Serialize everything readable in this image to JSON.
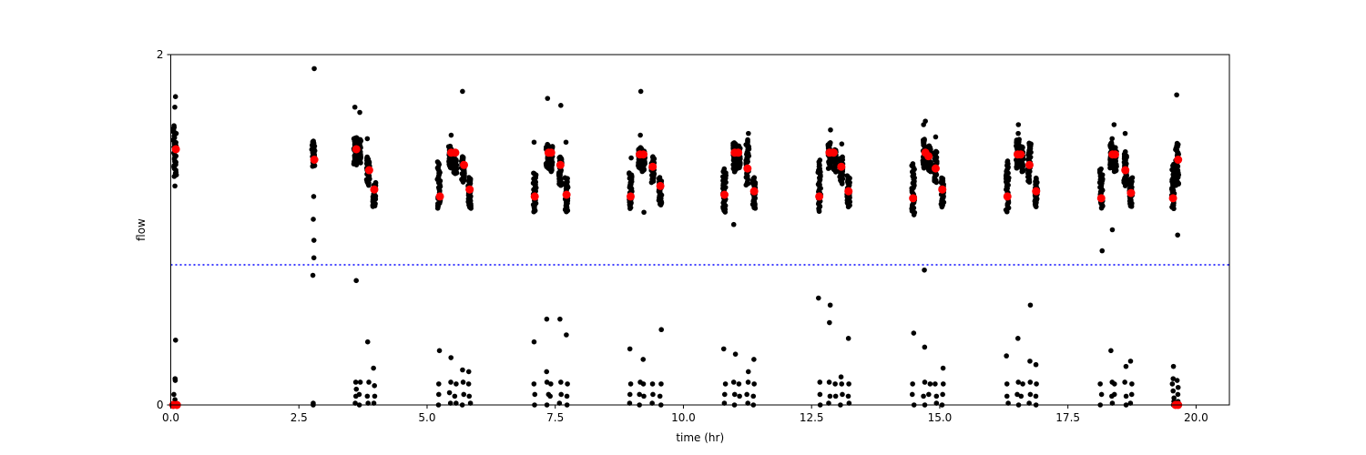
{
  "chart_data": {
    "type": "scatter",
    "xlabel": "time (hr)",
    "ylabel": "flow",
    "xlim": [
      0.0,
      20.65
    ],
    "ylim": [
      0,
      2
    ],
    "xticks": [
      0.0,
      2.5,
      5.0,
      7.5,
      10.0,
      12.5,
      15.0,
      17.5,
      20.0
    ],
    "xtick_labels": [
      "0.0",
      "2.5",
      "5.0",
      "7.5",
      "10.0",
      "12.5",
      "15.0",
      "17.5",
      "20.0"
    ],
    "yticks": [
      0,
      2
    ],
    "ytick_labels": [
      "0",
      "2"
    ],
    "grid": false,
    "threshold": {
      "y": 0.8,
      "color": "#0000ff",
      "style": "dotted"
    },
    "colors": {
      "raw": "#000000",
      "highlight": "#ff0000"
    },
    "raw_clusters": [
      {
        "x": 0.08,
        "ymin": 1.3,
        "ymax": 1.6,
        "outliers": [
          1.76,
          1.7,
          1.25,
          0.37,
          0.15,
          0.14,
          0.06,
          0.03,
          0.01,
          0.0
        ]
      },
      {
        "x": 2.78,
        "ymin": 1.36,
        "ymax": 1.51,
        "outliers": [
          1.92,
          1.19,
          1.06,
          0.94,
          0.84,
          0.74,
          0.01,
          0.0
        ]
      },
      {
        "x": 3.6,
        "ymin": 1.37,
        "ymax": 1.53,
        "outliers": [
          1.7,
          0.71,
          0.13,
          0.09,
          0.05,
          0.01
        ]
      },
      {
        "x": 3.68,
        "ymin": 1.38,
        "ymax": 1.52,
        "outliers": [
          1.67,
          0.13,
          0.06,
          0.0
        ]
      },
      {
        "x": 3.85,
        "ymin": 1.25,
        "ymax": 1.42,
        "outliers": [
          1.52,
          0.36,
          0.13,
          0.05,
          0.01
        ]
      },
      {
        "x": 3.97,
        "ymin": 1.13,
        "ymax": 1.27,
        "outliers": [
          0.21,
          0.11,
          0.05,
          0.01
        ]
      },
      {
        "x": 5.23,
        "ymin": 1.12,
        "ymax": 1.39,
        "outliers": [
          0.31,
          0.12,
          0.06,
          0.0
        ]
      },
      {
        "x": 5.45,
        "ymin": 1.35,
        "ymax": 1.48,
        "outliers": [
          1.54,
          0.27,
          0.13,
          0.07,
          0.01
        ]
      },
      {
        "x": 5.55,
        "ymin": 1.32,
        "ymax": 1.41,
        "outliers": [
          0.12,
          0.05,
          0.01
        ]
      },
      {
        "x": 5.7,
        "ymin": 1.27,
        "ymax": 1.42,
        "outliers": [
          1.79,
          0.2,
          0.13,
          0.06,
          0.0
        ]
      },
      {
        "x": 5.83,
        "ymin": 1.12,
        "ymax": 1.3,
        "outliers": [
          0.19,
          0.12,
          0.05,
          0.01
        ]
      },
      {
        "x": 7.1,
        "ymin": 1.1,
        "ymax": 1.33,
        "outliers": [
          1.5,
          0.36,
          0.12,
          0.06,
          0.0
        ]
      },
      {
        "x": 7.35,
        "ymin": 1.35,
        "ymax": 1.49,
        "outliers": [
          1.75,
          0.49,
          0.19,
          0.13,
          0.06,
          0.0
        ]
      },
      {
        "x": 7.42,
        "ymin": 1.33,
        "ymax": 1.48,
        "outliers": [
          0.12,
          0.05
        ]
      },
      {
        "x": 7.6,
        "ymin": 1.25,
        "ymax": 1.42,
        "outliers": [
          1.71,
          0.49,
          0.13,
          0.06,
          0.01
        ]
      },
      {
        "x": 7.72,
        "ymin": 1.1,
        "ymax": 1.3,
        "outliers": [
          1.5,
          0.4,
          0.12,
          0.05,
          0.0
        ]
      },
      {
        "x": 8.97,
        "ymin": 1.12,
        "ymax": 1.33,
        "outliers": [
          1.41,
          0.32,
          0.12,
          0.06,
          0.01
        ]
      },
      {
        "x": 9.15,
        "ymin": 1.35,
        "ymax": 1.47,
        "outliers": [
          1.79,
          1.54,
          0.13,
          0.06,
          0.0
        ]
      },
      {
        "x": 9.22,
        "ymin": 1.33,
        "ymax": 1.45,
        "outliers": [
          1.1,
          0.26,
          0.12,
          0.05
        ]
      },
      {
        "x": 9.4,
        "ymin": 1.27,
        "ymax": 1.42,
        "outliers": [
          0.12,
          0.06,
          0.01
        ]
      },
      {
        "x": 9.55,
        "ymin": 1.14,
        "ymax": 1.3,
        "outliers": [
          0.43,
          0.12,
          0.05,
          0.0
        ]
      },
      {
        "x": 10.8,
        "ymin": 1.1,
        "ymax": 1.35,
        "outliers": [
          0.32,
          0.12,
          0.06,
          0.01
        ]
      },
      {
        "x": 11.0,
        "ymin": 1.33,
        "ymax": 1.5,
        "outliers": [
          1.03,
          0.29,
          0.13,
          0.06,
          0.0
        ]
      },
      {
        "x": 11.08,
        "ymin": 1.35,
        "ymax": 1.48,
        "outliers": [
          0.12,
          0.05
        ]
      },
      {
        "x": 11.25,
        "ymin": 1.25,
        "ymax": 1.52,
        "outliers": [
          1.55,
          0.19,
          0.13,
          0.06,
          0.01
        ]
      },
      {
        "x": 11.38,
        "ymin": 1.12,
        "ymax": 1.3,
        "outliers": [
          0.26,
          0.12,
          0.05,
          0.0
        ]
      },
      {
        "x": 12.65,
        "ymin": 1.1,
        "ymax": 1.4,
        "outliers": [
          0.61,
          0.13,
          0.06,
          0.0
        ]
      },
      {
        "x": 12.85,
        "ymin": 1.35,
        "ymax": 1.5,
        "outliers": [
          1.57,
          0.57,
          0.47,
          0.13,
          0.05,
          0.01
        ]
      },
      {
        "x": 12.95,
        "ymin": 1.33,
        "ymax": 1.46,
        "outliers": [
          0.12,
          0.05
        ]
      },
      {
        "x": 13.08,
        "ymin": 1.26,
        "ymax": 1.42,
        "outliers": [
          1.49,
          0.16,
          0.12,
          0.06,
          0.0
        ]
      },
      {
        "x": 13.22,
        "ymin": 1.13,
        "ymax": 1.31,
        "outliers": [
          0.38,
          0.12,
          0.05,
          0.01
        ]
      },
      {
        "x": 14.48,
        "ymin": 1.08,
        "ymax": 1.38,
        "outliers": [
          0.41,
          0.12,
          0.06,
          0.0
        ]
      },
      {
        "x": 14.7,
        "ymin": 1.35,
        "ymax": 1.52,
        "outliers": [
          1.62,
          1.6,
          0.77,
          0.33,
          0.13,
          0.05,
          0.0
        ]
      },
      {
        "x": 14.8,
        "ymin": 1.33,
        "ymax": 1.48,
        "outliers": [
          0.12,
          0.06
        ]
      },
      {
        "x": 14.92,
        "ymin": 1.27,
        "ymax": 1.45,
        "outliers": [
          1.53,
          0.12,
          0.05,
          0.01
        ]
      },
      {
        "x": 15.05,
        "ymin": 1.13,
        "ymax": 1.3,
        "outliers": [
          0.21,
          0.12,
          0.06,
          0.0
        ]
      },
      {
        "x": 16.32,
        "ymin": 1.1,
        "ymax": 1.4,
        "outliers": [
          0.28,
          0.12,
          0.05,
          0.01
        ]
      },
      {
        "x": 16.52,
        "ymin": 1.35,
        "ymax": 1.52,
        "outliers": [
          1.6,
          1.55,
          0.38,
          0.13,
          0.06,
          0.0
        ]
      },
      {
        "x": 16.6,
        "ymin": 1.33,
        "ymax": 1.48,
        "outliers": [
          0.12,
          0.05
        ]
      },
      {
        "x": 16.75,
        "ymin": 1.27,
        "ymax": 1.5,
        "outliers": [
          0.57,
          0.25,
          0.13,
          0.06,
          0.01
        ]
      },
      {
        "x": 16.88,
        "ymin": 1.13,
        "ymax": 1.3,
        "outliers": [
          0.23,
          0.12,
          0.05,
          0.0
        ]
      },
      {
        "x": 18.15,
        "ymin": 1.12,
        "ymax": 1.35,
        "outliers": [
          0.88,
          0.12,
          0.06,
          0.0
        ]
      },
      {
        "x": 18.35,
        "ymin": 1.35,
        "ymax": 1.5,
        "outliers": [
          1.52,
          1.0,
          0.31,
          0.13,
          0.05,
          0.01
        ]
      },
      {
        "x": 18.42,
        "ymin": 1.33,
        "ymax": 1.47,
        "outliers": [
          1.6,
          0.12,
          0.06
        ]
      },
      {
        "x": 18.62,
        "ymin": 1.25,
        "ymax": 1.45,
        "outliers": [
          1.55,
          0.22,
          0.13,
          0.05,
          0.0
        ]
      },
      {
        "x": 18.73,
        "ymin": 1.13,
        "ymax": 1.3,
        "outliers": [
          0.25,
          0.12,
          0.06,
          0.01
        ]
      },
      {
        "x": 19.55,
        "ymin": 1.12,
        "ymax": 1.38,
        "outliers": [
          0.22,
          0.15,
          0.12,
          0.08,
          0.04,
          0.02,
          0.0
        ]
      },
      {
        "x": 19.63,
        "ymin": 1.25,
        "ymax": 1.5,
        "outliers": [
          1.77,
          0.97,
          0.14,
          0.1,
          0.06,
          0.02,
          0.0
        ]
      }
    ],
    "highlight_points": [
      {
        "x": 0.1,
        "y": 1.46
      },
      {
        "x": 0.05,
        "y": 0.0
      },
      {
        "x": 0.12,
        "y": 0.0
      },
      {
        "x": 2.8,
        "y": 1.4
      },
      {
        "x": 3.62,
        "y": 1.46
      },
      {
        "x": 3.87,
        "y": 1.34
      },
      {
        "x": 3.97,
        "y": 1.23
      },
      {
        "x": 5.25,
        "y": 1.19
      },
      {
        "x": 5.47,
        "y": 1.44
      },
      {
        "x": 5.55,
        "y": 1.44
      },
      {
        "x": 5.72,
        "y": 1.37
      },
      {
        "x": 5.83,
        "y": 1.23
      },
      {
        "x": 7.1,
        "y": 1.19
      },
      {
        "x": 7.37,
        "y": 1.44
      },
      {
        "x": 7.42,
        "y": 1.44
      },
      {
        "x": 7.6,
        "y": 1.37
      },
      {
        "x": 7.72,
        "y": 1.2
      },
      {
        "x": 8.97,
        "y": 1.19
      },
      {
        "x": 9.15,
        "y": 1.43
      },
      {
        "x": 9.22,
        "y": 1.43
      },
      {
        "x": 9.4,
        "y": 1.36
      },
      {
        "x": 9.55,
        "y": 1.25
      },
      {
        "x": 10.8,
        "y": 1.2
      },
      {
        "x": 11.0,
        "y": 1.44
      },
      {
        "x": 11.07,
        "y": 1.44
      },
      {
        "x": 11.25,
        "y": 1.35
      },
      {
        "x": 11.38,
        "y": 1.22
      },
      {
        "x": 12.65,
        "y": 1.19
      },
      {
        "x": 12.85,
        "y": 1.44
      },
      {
        "x": 12.93,
        "y": 1.44
      },
      {
        "x": 13.08,
        "y": 1.36
      },
      {
        "x": 13.22,
        "y": 1.22
      },
      {
        "x": 14.48,
        "y": 1.18
      },
      {
        "x": 14.72,
        "y": 1.44
      },
      {
        "x": 14.78,
        "y": 1.42
      },
      {
        "x": 14.92,
        "y": 1.35
      },
      {
        "x": 15.05,
        "y": 1.23
      },
      {
        "x": 16.32,
        "y": 1.19
      },
      {
        "x": 16.52,
        "y": 1.43
      },
      {
        "x": 16.58,
        "y": 1.43
      },
      {
        "x": 16.75,
        "y": 1.37
      },
      {
        "x": 16.88,
        "y": 1.22
      },
      {
        "x": 18.15,
        "y": 1.18
      },
      {
        "x": 18.37,
        "y": 1.43
      },
      {
        "x": 18.42,
        "y": 1.43
      },
      {
        "x": 18.62,
        "y": 1.34
      },
      {
        "x": 18.73,
        "y": 1.21
      },
      {
        "x": 19.55,
        "y": 1.18
      },
      {
        "x": 19.65,
        "y": 1.4
      },
      {
        "x": 19.6,
        "y": 0.0
      },
      {
        "x": 19.65,
        "y": 0.0
      }
    ]
  }
}
